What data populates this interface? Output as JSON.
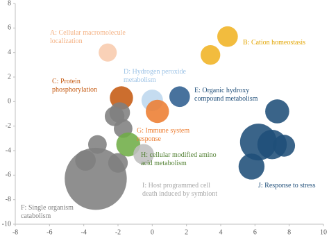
{
  "chart_data": {
    "type": "bubble",
    "xlim": [
      -8,
      10
    ],
    "xticks": [
      -8,
      -6,
      -4,
      -2,
      0,
      2,
      4,
      6,
      8,
      10
    ],
    "ylim": [
      -10,
      8
    ],
    "yticks": [
      -10,
      -8,
      -6,
      -4,
      -2,
      0,
      2,
      4,
      6,
      8
    ],
    "series": [
      {
        "name": "A: Cellular macromolecule localization",
        "color": "#f8cbad",
        "x": [
          -2.6
        ],
        "values": [
          4.0
        ],
        "sizes": [
          17
        ]
      },
      {
        "name": "B: Cation homeostasis",
        "color": "#f0b323",
        "x": [
          4.4,
          3.4
        ],
        "values": [
          5.3,
          3.8
        ],
        "sizes": [
          22,
          20
        ]
      },
      {
        "name": "C: Protein phosphorylation",
        "color": "#c55a11",
        "x": [
          -1.8
        ],
        "values": [
          0.3
        ],
        "sizes": [
          28
        ]
      },
      {
        "name": "D: Hydrogen peroxide metabolism",
        "color": "#bdd7ee",
        "x": [
          0.0
        ],
        "values": [
          0.1
        ],
        "sizes": [
          24
        ]
      },
      {
        "name": "E: Organic hydroxy compound metabolism",
        "color": "#2f5f8f",
        "x": [
          1.6
        ],
        "values": [
          0.4
        ],
        "sizes": [
          22
        ]
      },
      {
        "name": "F: Single organism catabolism",
        "color": "#7f7f7f",
        "x": [
          -3.3,
          -1.9,
          -2.2,
          -1.7,
          -3.2,
          -3.9,
          -2.0
        ],
        "values": [
          -6.3,
          -0.9,
          -1.2,
          -2.2,
          -3.5,
          -4.8,
          -5.0
        ],
        "sizes": [
          200,
          22,
          20,
          18,
          18,
          22,
          20
        ]
      },
      {
        "name": "G: Immune system response",
        "color": "#ed7d31",
        "x": [
          0.3
        ],
        "values": [
          -0.8
        ],
        "sizes": [
          28
        ]
      },
      {
        "name": "H: cellular modified amino acid metabolism",
        "color": "#70ad47",
        "x": [
          -1.4
        ],
        "values": [
          -3.5
        ],
        "sizes": [
          30
        ]
      },
      {
        "name": "I: Host programmed cell death induced by symbiont",
        "color": "#bfbfbf",
        "x": [
          -0.5
        ],
        "values": [
          -4.3
        ],
        "sizes": [
          22
        ]
      },
      {
        "name": "J: Response to stress",
        "color": "#1f4e79",
        "x": [
          7.3,
          6.2,
          7.0,
          7.7,
          5.8
        ],
        "values": [
          -0.8,
          -3.3,
          -3.5,
          -3.6,
          -5.3
        ],
        "sizes": [
          30,
          70,
          45,
          25,
          35
        ]
      }
    ]
  }
}
